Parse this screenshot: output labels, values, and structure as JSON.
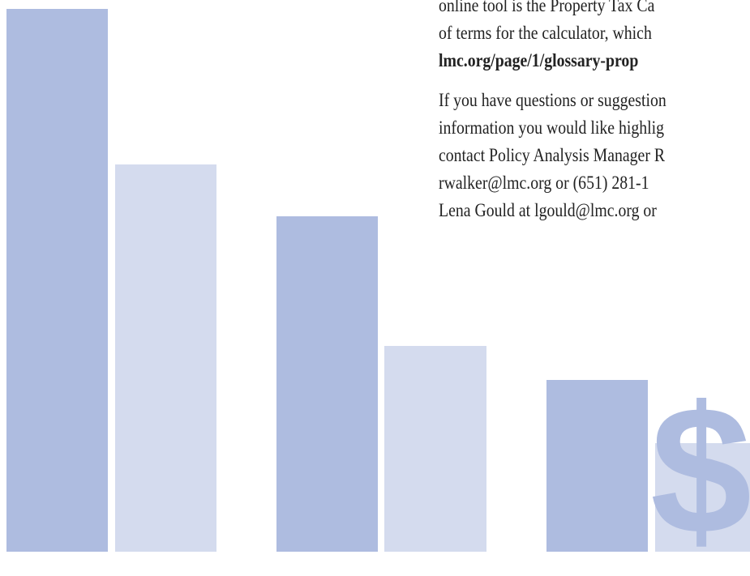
{
  "paragraphs": [
    {
      "lines": [
        "online tool is the Property Tax Ca",
        "of terms for the calculator, which"
      ],
      "link": "lmc.org/page/1/glossary-prop"
    },
    {
      "lines": [
        "If you have questions or suggestion",
        "information you would like highlig",
        "contact Policy Analysis Manager R",
        "rwalker@lmc.org or (651) 281-1",
        "Lena Gould at lgould@lmc.org or"
      ]
    }
  ]
}
